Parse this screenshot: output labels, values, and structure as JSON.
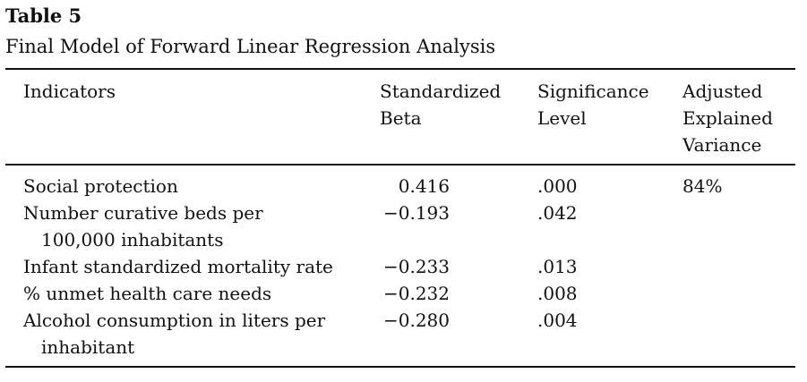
{
  "table": {
    "label": "Table 5",
    "title": "Final Model of Forward Linear Regression Analysis",
    "headers": {
      "indicators": "Indicators",
      "beta_line1": "Standardized",
      "beta_line2": "Beta",
      "sig_line1": "Significance",
      "sig_line2": "Level",
      "adj_line1": "Adjusted",
      "adj_line2": "Explained",
      "adj_line3": "Variance"
    },
    "rows": [
      {
        "indicator_line1": "Social protection",
        "indicator_line2": "",
        "beta": "0.416",
        "significance": ".000",
        "adjusted": "84%"
      },
      {
        "indicator_line1": "Number curative beds per",
        "indicator_line2": "100,000 inhabitants",
        "beta": "−0.193",
        "significance": ".042",
        "adjusted": ""
      },
      {
        "indicator_line1": "Infant standardized mortality rate",
        "indicator_line2": "",
        "beta": "−0.233",
        "significance": ".013",
        "adjusted": ""
      },
      {
        "indicator_line1": "% unmet health care needs",
        "indicator_line2": "",
        "beta": "−0.232",
        "significance": ".008",
        "adjusted": ""
      },
      {
        "indicator_line1": "Alcohol consumption in liters per",
        "indicator_line2": "inhabitant",
        "beta": "−0.280",
        "significance": ".004",
        "adjusted": ""
      }
    ]
  }
}
